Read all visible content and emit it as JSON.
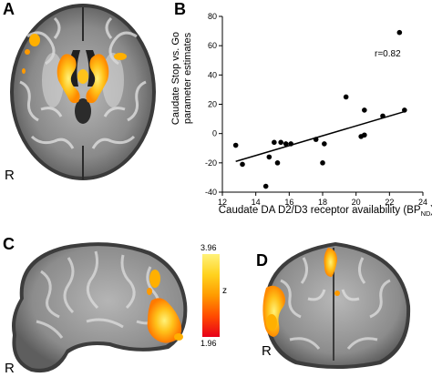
{
  "panels": {
    "a": {
      "letter": "A",
      "orientation": "R"
    },
    "b": {
      "letter": "B"
    },
    "c": {
      "letter": "C",
      "orientation": "R"
    },
    "d": {
      "letter": "D",
      "orientation": "R"
    }
  },
  "colorbar": {
    "max_label": "3.96",
    "min_label": "1.96",
    "axis_label": "z",
    "colors": [
      "#e8001a",
      "#ff4b00",
      "#ff9a00",
      "#ffd21e",
      "#fff27a"
    ]
  },
  "chart_data": {
    "type": "scatter",
    "ylabel_line1": "Caudate Stop vs. Go",
    "ylabel_line2": "parameter estimates",
    "xlabel_main": "Caudate DA D2/D3 receptor availability (BP",
    "xlabel_sub": "ND",
    "xlabel_end": ")",
    "annotation": "r=0.82",
    "xlim": [
      12,
      24
    ],
    "ylim": [
      -40,
      80
    ],
    "xticks": [
      12,
      14,
      16,
      18,
      20,
      22,
      24
    ],
    "yticks": [
      -40,
      -20,
      0,
      20,
      40,
      60,
      80
    ],
    "grid": false,
    "points": [
      {
        "x": 12.8,
        "y": -8
      },
      {
        "x": 13.2,
        "y": -21
      },
      {
        "x": 14.6,
        "y": -36
      },
      {
        "x": 14.8,
        "y": -16
      },
      {
        "x": 15.1,
        "y": -6
      },
      {
        "x": 15.3,
        "y": -20
      },
      {
        "x": 15.5,
        "y": -6
      },
      {
        "x": 15.8,
        "y": -7
      },
      {
        "x": 16.1,
        "y": -7
      },
      {
        "x": 17.6,
        "y": -4
      },
      {
        "x": 18.0,
        "y": -20
      },
      {
        "x": 18.1,
        "y": -7
      },
      {
        "x": 19.4,
        "y": 25
      },
      {
        "x": 20.3,
        "y": -2
      },
      {
        "x": 20.5,
        "y": -1
      },
      {
        "x": 20.5,
        "y": 16
      },
      {
        "x": 21.6,
        "y": 12
      },
      {
        "x": 22.6,
        "y": 69
      },
      {
        "x": 22.9,
        "y": 16
      }
    ],
    "regression_line": {
      "x": [
        12.8,
        22.9
      ],
      "y": [
        -19,
        15
      ]
    }
  }
}
